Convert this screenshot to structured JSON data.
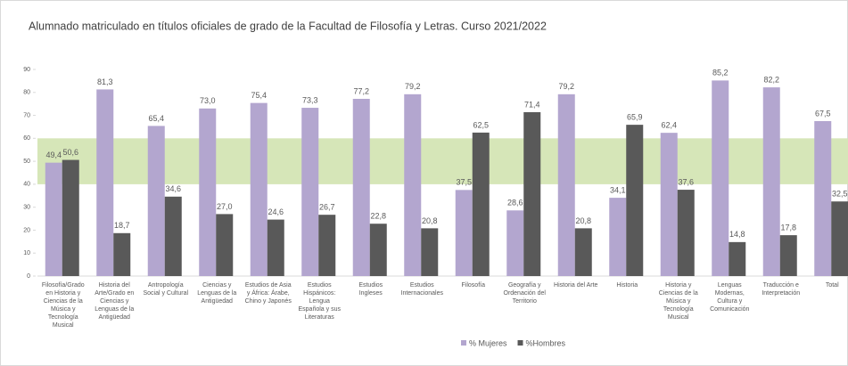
{
  "chart_data": {
    "type": "bar",
    "title": "Alumnado matriculado  en títulos oficiales de grado de la Facultad de Filosofía y Letras. Curso 2021/2022",
    "categories": [
      "Filosofía/Grado en Historia y Ciencias de la Música y Tecnología Musical",
      "Historia del Arte/Grado en Ciencias y Lenguas de la Antigüedad",
      "Antropología Social y Cultural",
      "Ciencias y Lenguas de la Antigüedad",
      "Estudios de Asia y África: Árabe, Chino y Japonés",
      "Estudios Hispánicos: Lengua Española y sus Literaturas",
      "Estudios Ingleses",
      "Estudios Internacionales",
      "Filosofía",
      "Geografía y Ordenación del Territorio",
      "Historia del Arte",
      "Historia",
      "Historia y Ciencias de la Música y Tecnología Musical",
      "Lenguas Modernas, Cultura y Comunicación",
      "Traducción e Interpretación",
      "Total"
    ],
    "series": [
      {
        "name": "% Mujeres",
        "color": "#b3a6cf",
        "values": [
          49.4,
          81.3,
          65.4,
          73.0,
          75.4,
          73.3,
          77.2,
          79.2,
          37.5,
          28.6,
          79.2,
          34.1,
          62.4,
          85.2,
          82.2,
          67.5
        ],
        "value_labels": [
          "49,4",
          "81,3",
          "65,4",
          "73,0",
          "75,4",
          "73,3",
          "77,2",
          "79,2",
          "37,5",
          "28,6",
          "79,2",
          "34,1",
          "62,4",
          "85,2",
          "82,2",
          "67,5"
        ]
      },
      {
        "name": "%Hombres",
        "color": "#595959",
        "values": [
          50.6,
          18.7,
          34.6,
          27.0,
          24.6,
          26.7,
          22.8,
          20.8,
          62.5,
          71.4,
          20.8,
          65.9,
          37.6,
          14.8,
          17.8,
          32.5
        ],
        "value_labels": [
          "50,6",
          "18,7",
          "34,6",
          "27,0",
          "24,6",
          "26,7",
          "22,8",
          "20,8",
          "62,5",
          "71,4",
          "20,8",
          "65,9",
          "37,6",
          "14,8",
          "17,8",
          "32,5"
        ]
      }
    ],
    "ylim": [
      0,
      90
    ],
    "yticks": [
      0,
      10,
      20,
      30,
      40,
      50,
      60,
      70,
      80,
      90
    ],
    "band": [
      40,
      60
    ],
    "band_color": "#d6e6b8",
    "legend": "bottom"
  }
}
